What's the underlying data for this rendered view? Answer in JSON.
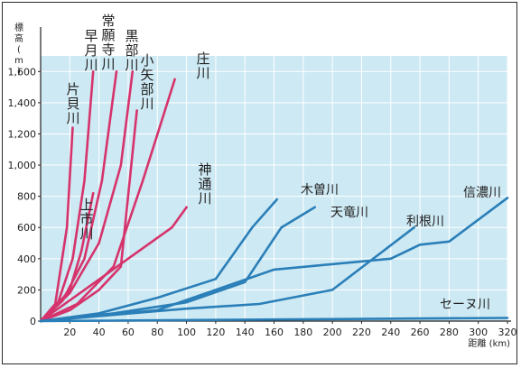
{
  "chart_data": {
    "type": "line",
    "title": "",
    "xlabel": "距離 (km)",
    "ylabel": "標高 (m)",
    "xlim": [
      0,
      320
    ],
    "ylim": [
      0,
      1700
    ],
    "xticks": [
      20,
      40,
      60,
      80,
      100,
      120,
      140,
      160,
      180,
      200,
      220,
      240,
      260,
      280,
      300,
      320
    ],
    "xtick_labels": [
      "20",
      "40",
      "60",
      "80",
      "100",
      "120",
      "140",
      "160",
      "180",
      "200",
      "220",
      "240",
      "260",
      "280",
      "300",
      "320"
    ],
    "yticks": [
      0,
      200,
      400,
      600,
      800,
      1000,
      1200,
      1400,
      1600
    ],
    "ytick_labels": [
      "0",
      "200",
      "400",
      "600",
      "800",
      "1,000",
      "1,200",
      "1,400",
      "1,600"
    ],
    "grid": true,
    "colors": {
      "japan": "#d6336c",
      "world": "#2a7fb8",
      "background": "#cde9f3"
    },
    "series": [
      {
        "name": "片貝川",
        "group": "japan",
        "x": [
          0,
          10,
          18,
          22
        ],
        "y": [
          0,
          110,
          600,
          1240
        ]
      },
      {
        "name": "早月川",
        "group": "japan",
        "x": [
          0,
          12,
          22,
          30,
          36
        ],
        "y": [
          0,
          120,
          400,
          900,
          1600
        ]
      },
      {
        "name": "常願寺川",
        "group": "japan",
        "x": [
          0,
          15,
          30,
          42,
          52
        ],
        "y": [
          0,
          130,
          400,
          900,
          1600
        ]
      },
      {
        "name": "上市川",
        "group": "japan",
        "x": [
          0,
          10,
          20,
          28,
          36
        ],
        "y": [
          0,
          90,
          200,
          450,
          820
        ]
      },
      {
        "name": "黒部川",
        "group": "japan",
        "x": [
          0,
          20,
          40,
          55,
          63
        ],
        "y": [
          0,
          180,
          500,
          1000,
          1600
        ]
      },
      {
        "name": "小矢部川",
        "group": "japan",
        "x": [
          0,
          20,
          40,
          55,
          66
        ],
        "y": [
          0,
          70,
          200,
          350,
          1350
        ]
      },
      {
        "name": "庄川",
        "group": "japan",
        "x": [
          0,
          25,
          50,
          70,
          92
        ],
        "y": [
          0,
          110,
          350,
          900,
          1550
        ]
      },
      {
        "name": "神通川",
        "group": "japan",
        "x": [
          0,
          30,
          60,
          90,
          100
        ],
        "y": [
          0,
          200,
          400,
          600,
          730
        ]
      },
      {
        "name": "木曽川",
        "group": "world",
        "x": [
          0,
          40,
          80,
          120,
          145,
          162
        ],
        "y": [
          0,
          50,
          150,
          270,
          600,
          780
        ]
      },
      {
        "name": "天竜川",
        "group": "world",
        "x": [
          0,
          50,
          100,
          140,
          165,
          188
        ],
        "y": [
          0,
          50,
          120,
          250,
          600,
          730
        ]
      },
      {
        "name": "利根川",
        "group": "world",
        "x": [
          0,
          50,
          100,
          150,
          200,
          256
        ],
        "y": [
          0,
          40,
          80,
          110,
          200,
          600
        ]
      },
      {
        "name": "信濃川",
        "group": "world",
        "x": [
          0,
          80,
          160,
          240,
          260,
          280,
          320
        ],
        "y": [
          0,
          70,
          330,
          400,
          490,
          510,
          790
        ]
      },
      {
        "name": "セーヌ川",
        "group": "world",
        "x": [
          0,
          320
        ],
        "y": [
          0,
          20
        ]
      }
    ]
  }
}
